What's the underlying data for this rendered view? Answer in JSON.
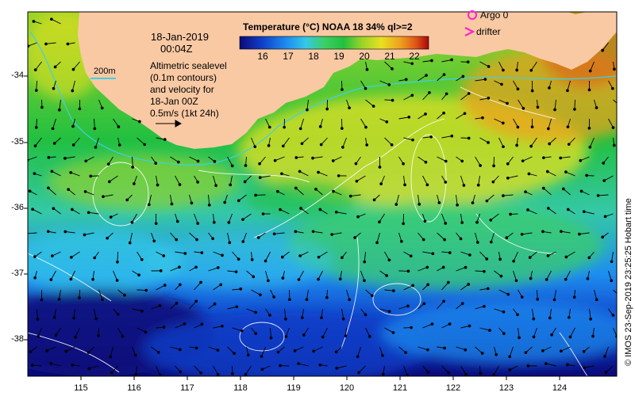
{
  "title": "Temperature (°C) NOAA 18 34% ql>=2",
  "date_line": "18-Jan-2019",
  "time_line": "00:04Z",
  "legend_200m": "200m",
  "description_lines": [
    "Altimetric sealevel",
    "(0.1m contours)",
    "and velocity for",
    "18-Jan 00Z",
    "0.5m/s (1kt 24h)"
  ],
  "argo_label": "Argo 0",
  "drifter_label": "drifter",
  "credit": "© IMOS 23-Sep-2019 23:25:25 Hobart time",
  "colorbar_ticks": [
    "16",
    "17",
    "18",
    "19",
    "20",
    "21",
    "22"
  ],
  "lat_ticks": [
    "-34",
    "-35",
    "-36",
    "-37",
    "-38"
  ],
  "lon_ticks": [
    "115",
    "116",
    "117",
    "118",
    "119",
    "120",
    "121",
    "122",
    "123",
    "124"
  ],
  "colors": {
    "land": "#f9c9a4",
    "isobath": "#3fd0e6",
    "contour": "#ffffff",
    "argo": "#ff22cc",
    "drifter": "#ff22cc",
    "colormap": [
      "#0a0a7a",
      "#1040c8",
      "#1e8ef0",
      "#35c8e8",
      "#3ccf64",
      "#22c040",
      "#9ed428",
      "#e8e020",
      "#f0a020",
      "#e05818",
      "#a80808"
    ]
  },
  "icons": {
    "argo": "circle-icon",
    "drifter": "chevron-icon",
    "velocity_scale": "arrow-icon"
  }
}
